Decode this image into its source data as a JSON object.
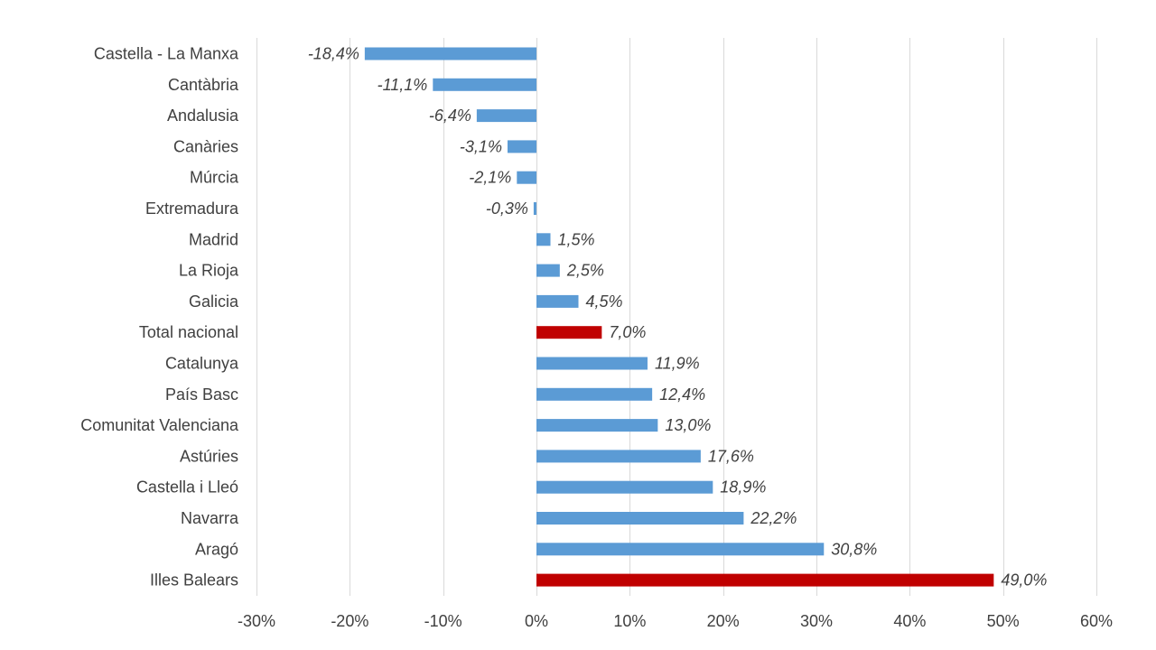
{
  "chart_data": {
    "type": "bar",
    "orientation": "horizontal",
    "categories": [
      "Castella - La Manxa",
      "Cantàbria",
      "Andalusia",
      "Canàries",
      "Múrcia",
      "Extremadura",
      "Madrid",
      "La Rioja",
      "Galicia",
      "Total nacional",
      "Catalunya",
      "País Basc",
      "Comunitat Valenciana",
      "Astúries",
      "Castella i Lleó",
      "Navarra",
      "Aragó",
      "Illes Balears"
    ],
    "values": [
      -18.4,
      -11.1,
      -6.4,
      -3.1,
      -2.1,
      -0.3,
      1.5,
      2.5,
      4.5,
      7.0,
      11.9,
      12.4,
      13.0,
      17.6,
      18.9,
      22.2,
      30.8,
      49.0
    ],
    "data_labels": [
      "-18,4%",
      "-11,1%",
      "-6,4%",
      "-3,1%",
      "-2,1%",
      "-0,3%",
      "1,5%",
      "2,5%",
      "4,5%",
      "7,0%",
      "11,9%",
      "12,4%",
      "13,0%",
      "17,6%",
      "18,9%",
      "22,2%",
      "30,8%",
      "49,0%"
    ],
    "xlim": [
      -30,
      60
    ],
    "x_ticks": [
      -30,
      -20,
      -10,
      0,
      10,
      20,
      30,
      40,
      50,
      60
    ],
    "x_tick_labels": [
      "-30%",
      "-20%",
      "-10%",
      "0%",
      "10%",
      "20%",
      "30%",
      "40%",
      "50%",
      "60%"
    ],
    "grid": "vertical",
    "legend": "none",
    "colors": {
      "default": "#5b9bd5",
      "highlight": "#c00000"
    },
    "highlighted": [
      "Total nacional",
      "Illes Balears"
    ]
  }
}
